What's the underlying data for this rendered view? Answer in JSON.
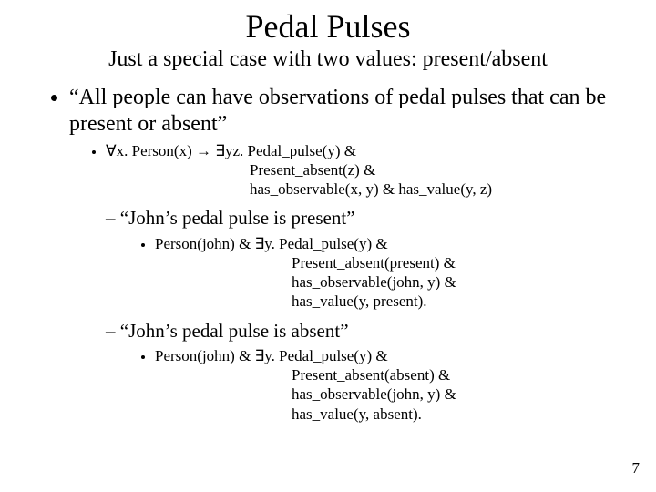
{
  "title": "Pedal Pulses",
  "subtitle": "Just a special case with two values: present/absent",
  "bullet1": "“All people can have observations of pedal pulses that can be present or absent”",
  "formula1_line1": "∀x. Person(x) → ∃yz. Pedal_pulse(y) &",
  "formula1_line2": "Present_absent(z) &",
  "formula1_line3": "has_observable(x, y) & has_value(y, z)",
  "sub1": "“John’s pedal pulse is  present”",
  "formula2_line1": "Person(john) & ∃y. Pedal_pulse(y) &",
  "formula2_line2": "Present_absent(present) &",
  "formula2_line3": "has_observable(john, y) &",
  "formula2_line4": "has_value(y, present).",
  "sub2": "“John’s pedal pulse is absent”",
  "formula3_line1": "Person(john) & ∃y. Pedal_pulse(y) &",
  "formula3_line2": "Present_absent(absent) &",
  "formula3_line3": "has_observable(john, y) &",
  "formula3_line4": "has_value(y, absent).",
  "page_number": "7"
}
